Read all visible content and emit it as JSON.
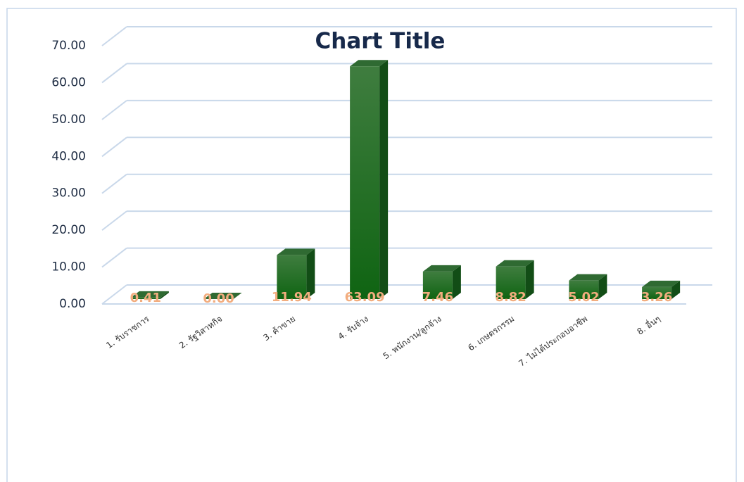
{
  "chart_data": {
    "type": "bar3d",
    "title": "Chart Title",
    "categories": [
      "1. รับราชการ",
      "2. รัฐวิสาหกิจ",
      "3. ค้าขาย",
      "4. รับจ้าง",
      "5. พนักงาน/ลูกจ้าง",
      "6. เกษตรกรรม",
      "7. ไม่ได้ประกอบอาชีพ",
      "8. อื่นๆ"
    ],
    "values": [
      0.41,
      0.0,
      11.94,
      63.09,
      7.46,
      8.82,
      5.02,
      3.26
    ],
    "value_labels": [
      "0.41",
      "0.00",
      "11.94",
      "63.09",
      "7.46",
      "8.82",
      "5.02",
      "3.26"
    ],
    "color": "#1b6b1b",
    "ylim": [
      0,
      70
    ],
    "yticks": [
      {
        "value": 0,
        "label": "0.00"
      },
      {
        "value": 10,
        "label": "10.00"
      },
      {
        "value": 20,
        "label": "20.00"
      },
      {
        "value": 30,
        "label": "30.00"
      },
      {
        "value": 40,
        "label": "40.00"
      },
      {
        "value": 50,
        "label": "50.00"
      },
      {
        "value": 60,
        "label": "60.00"
      },
      {
        "value": 70,
        "label": "70.00"
      }
    ],
    "grid": true
  }
}
